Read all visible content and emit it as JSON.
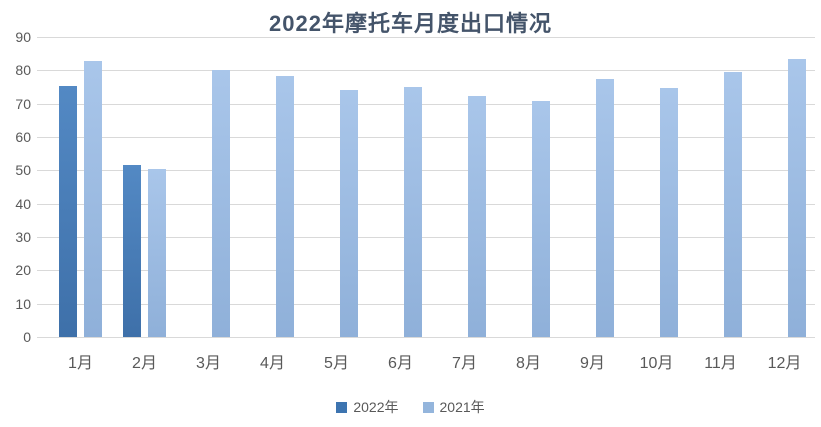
{
  "chart_data": {
    "type": "bar",
    "title": "2022年摩托车月度出口情况",
    "categories": [
      "1月",
      "2月",
      "3月",
      "4月",
      "5月",
      "6月",
      "7月",
      "8月",
      "9月",
      "10月",
      "11月",
      "12月"
    ],
    "series": [
      {
        "name": "2022年",
        "color_top": "#5389c4",
        "color_bottom": "#3e70a9",
        "legend_color": "#3d74b0",
        "values": [
          75.2,
          51.5,
          null,
          null,
          null,
          null,
          null,
          null,
          null,
          null,
          null,
          null
        ]
      },
      {
        "name": "2021年",
        "color_top": "#a9c6ea",
        "color_bottom": "#8fb0d9",
        "legend_color": "#94b5dc",
        "values": [
          82.9,
          50.3,
          80.2,
          78.4,
          74.2,
          74.9,
          72.4,
          70.7,
          77.5,
          74.7,
          79.5,
          83.5
        ]
      }
    ],
    "xlabel": "",
    "ylabel": "",
    "ylim": [
      0,
      90
    ],
    "yticks": [
      0,
      10,
      20,
      30,
      40,
      50,
      60,
      70,
      80,
      90
    ],
    "grid": "horizontal",
    "legend_position": "bottom"
  },
  "colors": {
    "title_text": "#44546a",
    "axis_text": "#595959",
    "gridline": "#d9d9d9",
    "background": "#ffffff"
  }
}
